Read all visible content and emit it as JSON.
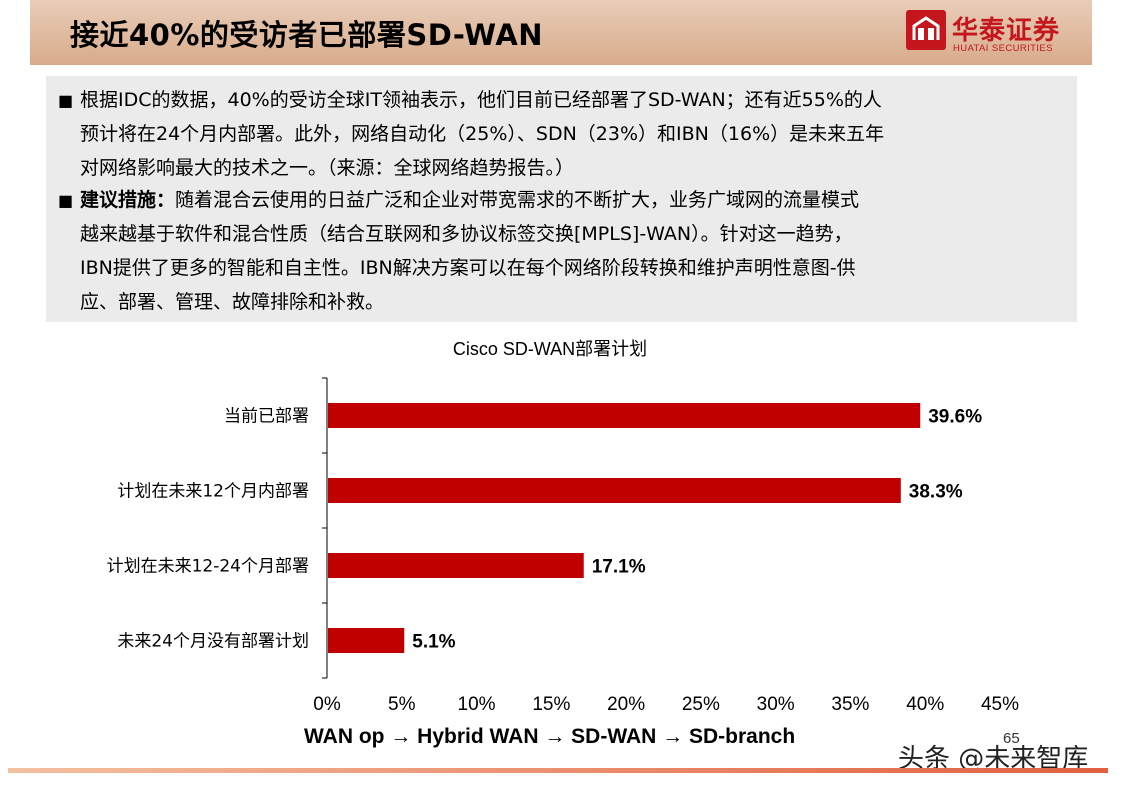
{
  "header": {
    "title": "接近40%的受访者已部署SD-WAN",
    "logo_cn": "华泰证券",
    "logo_en": "HUATAI SECURITIES"
  },
  "bullets": [
    {
      "lines": [
        "根据IDC的数据，40%的受访全球IT领袖表示，他们目前已经部署了SD-WAN；还有近55%的人",
        "预计将在24个月内部署。此外，网络自动化（25%）、SDN（23%）和IBN（16%）是未来五年",
        "对网络影响最大的技术之一。（来源：全球网络趋势报告。）"
      ]
    },
    {
      "lead": "建议措施：",
      "lines": [
        "随着混合云使用的日益广泛和企业对带宽需求的不断扩大，业务广域网的流量模式",
        "越来越基于软件和混合性质（结合互联网和多协议标签交换[MPLS]-WAN）。针对这一趋势，",
        "IBN提供了更多的智能和自主性。IBN解决方案可以在每个网络阶段转换和维护声明性意图-供",
        "应、部署、管理、故障排除和补救。"
      ]
    }
  ],
  "chart_data": {
    "type": "bar",
    "orientation": "horizontal",
    "title": "Cisco SD-WAN部署计划",
    "categories": [
      "当前已部署",
      "计划在未来12个月内部署",
      "计划在未来12-24个月部署",
      "未来24个月没有部署计划"
    ],
    "values": [
      39.6,
      38.3,
      17.1,
      5.1
    ],
    "data_labels": [
      "39.6%",
      "38.3%",
      "17.1%",
      "5.1%"
    ],
    "xlim": [
      0,
      45
    ],
    "xticks": [
      "0%",
      "5%",
      "10%",
      "15%",
      "20%",
      "25%",
      "30%",
      "35%",
      "40%",
      "45%"
    ],
    "bar_color": "#c00000",
    "grid": false,
    "legend": "none"
  },
  "caption": "WAN op → Hybrid WAN → SD-WAN → SD-branch",
  "page_number": "65",
  "watermark": "头条 @未来智库"
}
